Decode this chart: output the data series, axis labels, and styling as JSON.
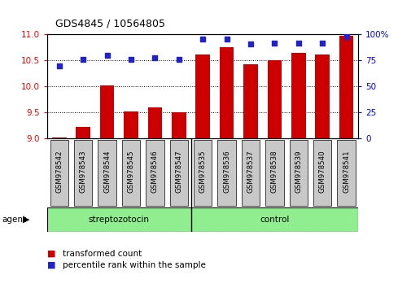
{
  "title": "GDS4845 / 10564805",
  "categories": [
    "GSM978542",
    "GSM978543",
    "GSM978544",
    "GSM978545",
    "GSM978546",
    "GSM978547",
    "GSM978535",
    "GSM978536",
    "GSM978537",
    "GSM978538",
    "GSM978539",
    "GSM978540",
    "GSM978541"
  ],
  "bar_values": [
    9.02,
    9.22,
    10.02,
    9.52,
    9.6,
    9.5,
    10.62,
    10.75,
    10.43,
    10.5,
    10.65,
    10.62,
    10.97
  ],
  "percentile_values": [
    70,
    76,
    80,
    76,
    78,
    76,
    96,
    96,
    91,
    92,
    92,
    92,
    98
  ],
  "bar_color": "#cc0000",
  "dot_color": "#2222cc",
  "ylim_left": [
    9,
    11
  ],
  "ylim_right": [
    0,
    100
  ],
  "yticks_left": [
    9,
    9.5,
    10,
    10.5,
    11
  ],
  "yticks_right": [
    0,
    25,
    50,
    75,
    100
  ],
  "streptozotocin_count": 6,
  "control_count": 7,
  "group_label": "agent",
  "group1_label": "streptozotocin",
  "group2_label": "control",
  "group_color": "#90ee90",
  "legend1": "transformed count",
  "legend2": "percentile rank within the sample",
  "background_color": "#ffffff",
  "tick_box_color": "#c8c8c8",
  "sep_color": "#000000"
}
